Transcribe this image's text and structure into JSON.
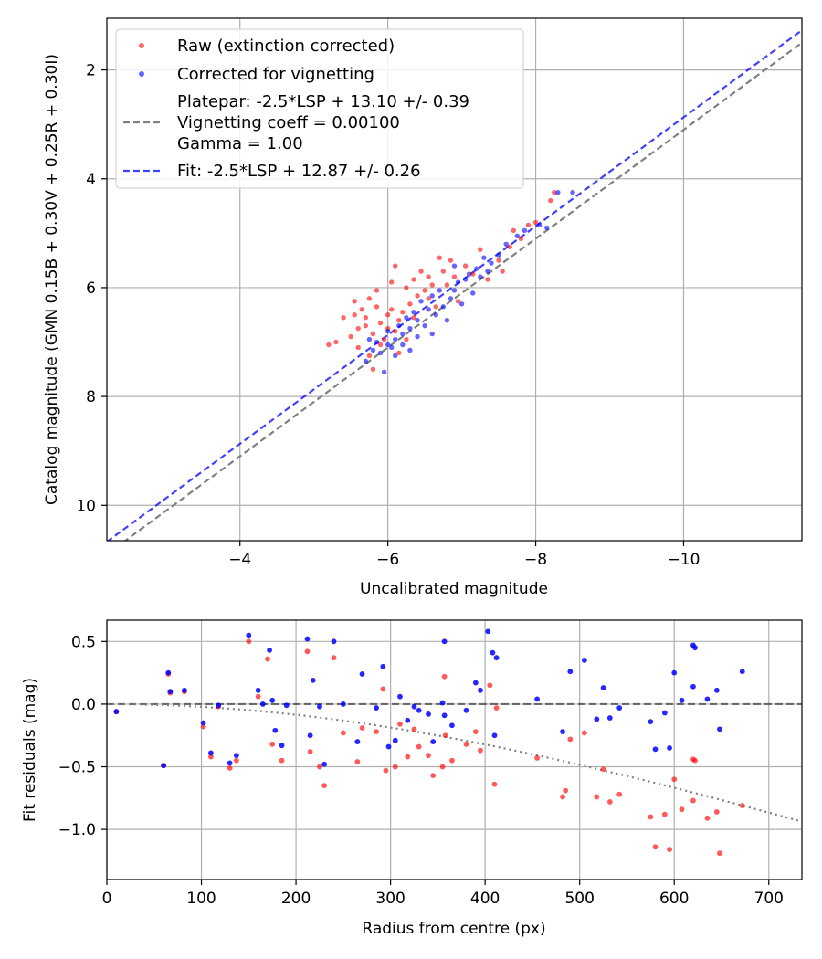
{
  "colors": {
    "raw": "#ff0000",
    "corrected": "#0000ff",
    "platepar_line": "#808080",
    "fit_line": "#0000ff",
    "zero_line": "#000000",
    "vignetting_curve": "#808080",
    "grid": "#b0b0b0"
  },
  "chart_data": [
    {
      "type": "scatter",
      "title": "",
      "xlabel": "Uncalibrated magnitude",
      "ylabel": "Catalog magnitude (GMN 0.15B + 0.30V + 0.25R + 0.30I)",
      "xlim": [
        -2.2,
        -11.6
      ],
      "ylim": [
        10.65,
        1.05
      ],
      "xticks": [
        -4,
        -6,
        -8,
        -10
      ],
      "xtick_labels": [
        "−4",
        "−6",
        "−8",
        "−10"
      ],
      "yticks": [
        2,
        4,
        6,
        8,
        10
      ],
      "ytick_labels": [
        "2",
        "4",
        "6",
        "8",
        "10"
      ],
      "grid": true,
      "legend_position": "top-left",
      "legend": [
        {
          "kind": "marker",
          "color": "#ff0000",
          "lines": [
            "Raw (extinction corrected)"
          ]
        },
        {
          "kind": "marker",
          "color": "#0000ff",
          "lines": [
            "Corrected for vignetting"
          ]
        },
        {
          "kind": "dashed",
          "color": "#808080",
          "lines": [
            "Platepar: -2.5*LSP + 13.10 +/- 0.39",
            "Vignetting coeff = 0.00100",
            "Gamma = 1.00"
          ]
        },
        {
          "kind": "dashed",
          "color": "#0000ff",
          "lines": [
            "Fit: -2.5*LSP + 12.87 +/- 0.26"
          ]
        }
      ],
      "lines": [
        {
          "name": "Platepar",
          "slope": 1.0,
          "intercept": 13.1,
          "color": "#808080"
        },
        {
          "name": "Fit",
          "slope": 1.0,
          "intercept": 12.87,
          "color": "#0000ff"
        }
      ],
      "series": [
        {
          "name": "Raw (extinction corrected)",
          "color": "#ff0000",
          "points": [
            [
              -5.3,
              7.0
            ],
            [
              -5.4,
              6.55
            ],
            [
              -5.5,
              6.9
            ],
            [
              -5.55,
              6.25
            ],
            [
              -5.55,
              6.5
            ],
            [
              -5.6,
              7.1
            ],
            [
              -5.6,
              6.75
            ],
            [
              -5.65,
              6.4
            ],
            [
              -5.7,
              6.7
            ],
            [
              -5.7,
              6.55
            ],
            [
              -5.75,
              6.2
            ],
            [
              -5.75,
              7.25
            ],
            [
              -5.8,
              6.85
            ],
            [
              -5.8,
              7.5
            ],
            [
              -5.85,
              6.35
            ],
            [
              -5.85,
              6.05
            ],
            [
              -5.9,
              6.65
            ],
            [
              -5.9,
              7.05
            ],
            [
              -5.95,
              6.95
            ],
            [
              -6.0,
              6.75
            ],
            [
              -6.0,
              6.5
            ],
            [
              -6.05,
              5.9
            ],
            [
              -6.05,
              6.4
            ],
            [
              -6.1,
              5.6
            ],
            [
              -6.1,
              6.8
            ],
            [
              -6.15,
              7.2
            ],
            [
              -6.15,
              6.6
            ],
            [
              -6.2,
              6.45
            ],
            [
              -6.25,
              6.0
            ],
            [
              -6.25,
              6.95
            ],
            [
              -6.3,
              6.3
            ],
            [
              -6.35,
              5.85
            ],
            [
              -6.35,
              6.55
            ],
            [
              -6.4,
              6.15
            ],
            [
              -6.45,
              5.7
            ],
            [
              -6.5,
              6.05
            ],
            [
              -6.55,
              5.8
            ],
            [
              -6.55,
              6.2
            ],
            [
              -6.6,
              5.95
            ],
            [
              -6.65,
              6.35
            ],
            [
              -6.7,
              5.45
            ],
            [
              -6.75,
              5.7
            ],
            [
              -6.8,
              5.95
            ],
            [
              -6.85,
              5.5
            ],
            [
              -6.9,
              5.8
            ],
            [
              -6.95,
              6.25
            ],
            [
              -7.05,
              5.6
            ],
            [
              -7.15,
              5.75
            ],
            [
              -7.25,
              5.3
            ],
            [
              -7.35,
              5.85
            ],
            [
              -7.5,
              5.5
            ],
            [
              -7.55,
              5.7
            ],
            [
              -7.65,
              5.25
            ],
            [
              -7.7,
              4.95
            ],
            [
              -7.8,
              5.1
            ],
            [
              -7.9,
              4.85
            ],
            [
              -8.0,
              4.8
            ],
            [
              -8.2,
              4.4
            ],
            [
              -8.25,
              4.25
            ],
            [
              -5.2,
              7.05
            ]
          ]
        },
        {
          "name": "Corrected for vignetting",
          "color": "#0000ff",
          "points": [
            [
              -5.75,
              6.95
            ],
            [
              -5.8,
              7.15
            ],
            [
              -5.85,
              7.0
            ],
            [
              -5.9,
              7.2
            ],
            [
              -5.95,
              7.55
            ],
            [
              -6.0,
              7.05
            ],
            [
              -6.0,
              6.8
            ],
            [
              -6.05,
              7.1
            ],
            [
              -6.1,
              6.95
            ],
            [
              -6.1,
              7.25
            ],
            [
              -6.15,
              6.7
            ],
            [
              -6.2,
              6.85
            ],
            [
              -6.2,
              7.05
            ],
            [
              -6.25,
              6.55
            ],
            [
              -6.3,
              6.75
            ],
            [
              -6.3,
              7.15
            ],
            [
              -6.35,
              6.45
            ],
            [
              -6.4,
              6.9
            ],
            [
              -6.4,
              6.6
            ],
            [
              -6.45,
              6.25
            ],
            [
              -6.5,
              6.7
            ],
            [
              -6.55,
              6.4
            ],
            [
              -6.6,
              6.15
            ],
            [
              -6.6,
              6.85
            ],
            [
              -6.65,
              6.5
            ],
            [
              -6.7,
              6.05
            ],
            [
              -6.75,
              6.35
            ],
            [
              -6.8,
              6.6
            ],
            [
              -6.85,
              6.2
            ],
            [
              -6.9,
              6.05
            ],
            [
              -6.9,
              5.6
            ],
            [
              -6.95,
              5.9
            ],
            [
              -7.0,
              6.3
            ],
            [
              -7.05,
              5.85
            ],
            [
              -7.1,
              5.75
            ],
            [
              -7.15,
              6.1
            ],
            [
              -7.2,
              5.65
            ],
            [
              -7.25,
              5.8
            ],
            [
              -7.3,
              5.45
            ],
            [
              -7.35,
              5.7
            ],
            [
              -7.4,
              5.55
            ],
            [
              -7.5,
              5.4
            ],
            [
              -7.6,
              5.2
            ],
            [
              -7.75,
              5.05
            ],
            [
              -7.85,
              4.95
            ],
            [
              -8.05,
              4.85
            ],
            [
              -8.15,
              4.9
            ],
            [
              -8.3,
              4.25
            ],
            [
              -8.5,
              4.25
            ],
            [
              -5.7,
              7.35
            ]
          ]
        }
      ]
    },
    {
      "type": "scatter",
      "title": "",
      "xlabel": "Radius from centre (px)",
      "ylabel": "Fit residuals (mag)",
      "xlim": [
        0,
        735
      ],
      "ylim": [
        -1.4,
        0.67
      ],
      "xticks": [
        0,
        100,
        200,
        300,
        400,
        500,
        600,
        700
      ],
      "xtick_labels": [
        "0",
        "100",
        "200",
        "300",
        "400",
        "500",
        "600",
        "700"
      ],
      "yticks": [
        0.5,
        0.0,
        -0.5,
        -1.0
      ],
      "ytick_labels": [
        "0.5",
        "0.0",
        "−0.5",
        "−1.0"
      ],
      "grid": true,
      "zero_line": 0.0,
      "vignetting_coeff": 0.001,
      "series": [
        {
          "name": "Raw (extinction corrected)",
          "color": "#ff0000",
          "points": [
            [
              10,
              -0.06
            ],
            [
              60,
              -0.49
            ],
            [
              65,
              0.24
            ],
            [
              67,
              0.09
            ],
            [
              82,
              0.1
            ],
            [
              102,
              -0.18
            ],
            [
              110,
              -0.42
            ],
            [
              118,
              -0.02
            ],
            [
              130,
              -0.51
            ],
            [
              137,
              -0.45
            ],
            [
              150,
              0.5
            ],
            [
              160,
              0.06
            ],
            [
              170,
              0.36
            ],
            [
              175,
              -0.32
            ],
            [
              185,
              -0.45
            ],
            [
              212,
              0.42
            ],
            [
              215,
              -0.38
            ],
            [
              225,
              -0.5
            ],
            [
              230,
              -0.65
            ],
            [
              240,
              0.37
            ],
            [
              250,
              -0.23
            ],
            [
              265,
              -0.46
            ],
            [
              270,
              -0.19
            ],
            [
              285,
              -0.22
            ],
            [
              292,
              0.12
            ],
            [
              295,
              -0.53
            ],
            [
              305,
              -0.5
            ],
            [
              310,
              -0.16
            ],
            [
              318,
              -0.42
            ],
            [
              325,
              -0.2
            ],
            [
              330,
              -0.34
            ],
            [
              340,
              -0.41
            ],
            [
              345,
              -0.57
            ],
            [
              355,
              -0.5
            ],
            [
              358,
              -0.25
            ],
            [
              365,
              -0.45
            ],
            [
              380,
              -0.32
            ],
            [
              390,
              -0.22
            ],
            [
              395,
              -0.37
            ],
            [
              405,
              0.15
            ],
            [
              410,
              -0.64
            ],
            [
              412,
              -0.03
            ],
            [
              455,
              -0.43
            ],
            [
              482,
              -0.74
            ],
            [
              485,
              -0.69
            ],
            [
              490,
              -0.28
            ],
            [
              505,
              -0.23
            ],
            [
              518,
              -0.74
            ],
            [
              525,
              -0.52
            ],
            [
              532,
              -0.78
            ],
            [
              542,
              -0.72
            ],
            [
              575,
              -0.9
            ],
            [
              580,
              -1.14
            ],
            [
              590,
              -0.88
            ],
            [
              595,
              -1.16
            ],
            [
              600,
              -0.6
            ],
            [
              608,
              -0.84
            ],
            [
              620,
              -0.77
            ],
            [
              622,
              -0.45
            ],
            [
              635,
              -0.91
            ],
            [
              645,
              -0.86
            ],
            [
              648,
              -1.19
            ],
            [
              672,
              -0.81
            ],
            [
              357,
              0.22
            ],
            [
              620,
              -0.44
            ]
          ]
        },
        {
          "name": "Corrected for vignetting",
          "color": "#0000ff",
          "points": [
            [
              10,
              -0.06
            ],
            [
              60,
              -0.49
            ],
            [
              65,
              0.25
            ],
            [
              67,
              0.1
            ],
            [
              82,
              0.11
            ],
            [
              102,
              -0.15
            ],
            [
              110,
              -0.39
            ],
            [
              118,
              -0.01
            ],
            [
              130,
              -0.47
            ],
            [
              137,
              -0.41
            ],
            [
              150,
              0.55
            ],
            [
              160,
              0.11
            ],
            [
              165,
              0.0
            ],
            [
              172,
              0.43
            ],
            [
              175,
              0.03
            ],
            [
              178,
              -0.21
            ],
            [
              185,
              -0.33
            ],
            [
              190,
              -0.01
            ],
            [
              212,
              0.52
            ],
            [
              215,
              -0.25
            ],
            [
              218,
              0.19
            ],
            [
              225,
              -0.02
            ],
            [
              230,
              -0.48
            ],
            [
              240,
              0.5
            ],
            [
              250,
              0.0
            ],
            [
              265,
              -0.3
            ],
            [
              270,
              0.24
            ],
            [
              285,
              -0.03
            ],
            [
              292,
              0.3
            ],
            [
              298,
              -0.34
            ],
            [
              305,
              -0.29
            ],
            [
              310,
              0.06
            ],
            [
              318,
              -0.13
            ],
            [
              325,
              -0.02
            ],
            [
              330,
              -0.05
            ],
            [
              340,
              -0.08
            ],
            [
              345,
              -0.3
            ],
            [
              355,
              0.01
            ],
            [
              357,
              0.5
            ],
            [
              365,
              -0.17
            ],
            [
              380,
              -0.05
            ],
            [
              390,
              0.17
            ],
            [
              395,
              0.11
            ],
            [
              403,
              0.58
            ],
            [
              408,
              0.41
            ],
            [
              412,
              0.37
            ],
            [
              455,
              0.04
            ],
            [
              482,
              -0.22
            ],
            [
              490,
              0.26
            ],
            [
              505,
              0.35
            ],
            [
              518,
              -0.12
            ],
            [
              525,
              0.13
            ],
            [
              532,
              -0.11
            ],
            [
              542,
              -0.03
            ],
            [
              575,
              -0.14
            ],
            [
              580,
              -0.36
            ],
            [
              590,
              -0.07
            ],
            [
              595,
              -0.35
            ],
            [
              600,
              0.25
            ],
            [
              608,
              0.03
            ],
            [
              620,
              0.14
            ],
            [
              622,
              0.45
            ],
            [
              635,
              0.04
            ],
            [
              645,
              0.11
            ],
            [
              648,
              -0.2
            ],
            [
              672,
              0.26
            ],
            [
              410,
              -0.25
            ],
            [
              357,
              -0.09
            ],
            [
              620,
              0.47
            ]
          ]
        }
      ]
    }
  ]
}
